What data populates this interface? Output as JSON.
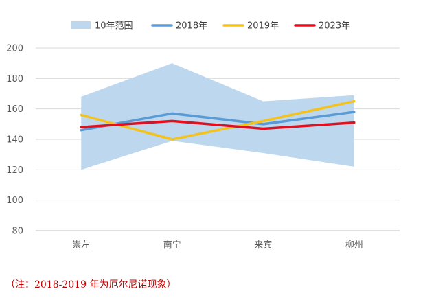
{
  "chart_data": {
    "type": "line",
    "categories": [
      "崇左",
      "南宁",
      "来宾",
      "柳州"
    ],
    "band": {
      "name": "10年范围",
      "low": [
        120,
        139,
        131,
        122
      ],
      "high": [
        168,
        190,
        165,
        169
      ],
      "color": "#bdd7ee"
    },
    "series": [
      {
        "name": "2018年",
        "values": [
          146,
          157,
          150,
          158
        ],
        "color": "#5b9bd5"
      },
      {
        "name": "2019年",
        "values": [
          156,
          140,
          152,
          165
        ],
        "color": "#f4c21c"
      },
      {
        "name": "2023年",
        "values": [
          148,
          152,
          147,
          151
        ],
        "color": "#e0101f"
      }
    ],
    "ylim": [
      80,
      200
    ],
    "yticks": [
      "80",
      "100",
      "120",
      "140",
      "160",
      "180",
      "200"
    ],
    "grid": true,
    "legend_position": "top"
  },
  "note": "（注：2018-2019 年为厄尔尼诺现象）"
}
